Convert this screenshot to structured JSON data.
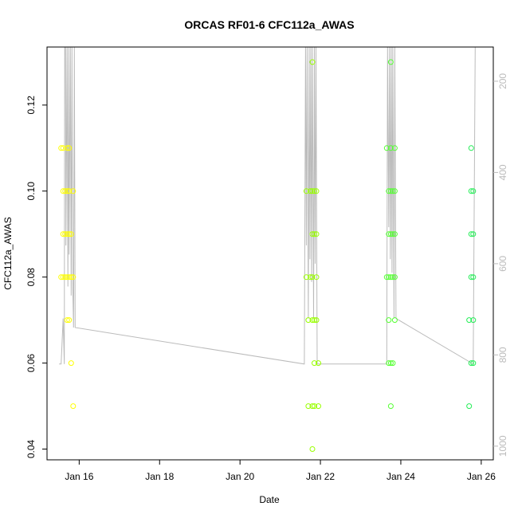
{
  "chart_data": {
    "type": "scatter",
    "title": "ORCAS RF01-6 CFC112a_AWAS",
    "xlabel": "Date",
    "ylabel": "CFC112a_AWAS",
    "x_unit": "date (January)",
    "xlim": [
      15.2,
      26.3
    ],
    "ylim": [
      0.0375,
      0.1335
    ],
    "x_ticks": [
      16,
      18,
      20,
      22,
      24,
      26
    ],
    "x_tick_labels": [
      "Jan 16",
      "Jan 18",
      "Jan 20",
      "Jan 22",
      "Jan 24",
      "Jan 26"
    ],
    "y_ticks": [
      0.04,
      0.06,
      0.08,
      0.1,
      0.12
    ],
    "y_tick_labels": [
      "0.04",
      "0.06",
      "0.08",
      "0.10",
      "0.12"
    ],
    "y2_axis": {
      "reversed": true,
      "range": [
        125,
        1030
      ],
      "ticks": [
        200,
        400,
        600,
        800,
        1000
      ],
      "tick_labels": [
        "200",
        "400",
        "600",
        "800",
        "1000"
      ],
      "color": "#bbbbbb"
    },
    "grid": false,
    "point_style": "open circle",
    "series": [
      {
        "color": "#ffff00",
        "points": [
          [
            15.55,
            0.11
          ],
          [
            15.6,
            0.11
          ],
          [
            15.7,
            0.11
          ],
          [
            15.75,
            0.11
          ],
          [
            15.6,
            0.1
          ],
          [
            15.65,
            0.1
          ],
          [
            15.7,
            0.1
          ],
          [
            15.75,
            0.1
          ],
          [
            15.85,
            0.1
          ],
          [
            15.6,
            0.09
          ],
          [
            15.65,
            0.09
          ],
          [
            15.7,
            0.09
          ],
          [
            15.75,
            0.09
          ],
          [
            15.8,
            0.09
          ],
          [
            15.55,
            0.08
          ],
          [
            15.6,
            0.08
          ],
          [
            15.65,
            0.08
          ],
          [
            15.7,
            0.08
          ],
          [
            15.75,
            0.08
          ],
          [
            15.8,
            0.08
          ],
          [
            15.85,
            0.08
          ],
          [
            15.7,
            0.07
          ],
          [
            15.75,
            0.07
          ],
          [
            15.8,
            0.06
          ],
          [
            15.85,
            0.05
          ]
        ]
      },
      {
        "color": "#99ff00",
        "points": [
          [
            21.65,
            0.1
          ],
          [
            21.75,
            0.1
          ],
          [
            21.8,
            0.1
          ],
          [
            21.85,
            0.1
          ],
          [
            21.9,
            0.1
          ],
          [
            21.8,
            0.09
          ],
          [
            21.85,
            0.09
          ],
          [
            21.9,
            0.09
          ],
          [
            21.65,
            0.08
          ],
          [
            21.75,
            0.08
          ],
          [
            21.8,
            0.08
          ],
          [
            21.9,
            0.08
          ],
          [
            21.7,
            0.07
          ],
          [
            21.8,
            0.07
          ],
          [
            21.85,
            0.07
          ],
          [
            21.9,
            0.07
          ],
          [
            21.85,
            0.06
          ],
          [
            21.95,
            0.06
          ],
          [
            21.7,
            0.05
          ],
          [
            21.8,
            0.05
          ],
          [
            21.85,
            0.05
          ],
          [
            21.95,
            0.05
          ],
          [
            21.8,
            0.04
          ],
          [
            21.8,
            0.13
          ]
        ]
      },
      {
        "color": "#55ff33",
        "points": [
          [
            23.65,
            0.11
          ],
          [
            23.75,
            0.11
          ],
          [
            23.85,
            0.11
          ],
          [
            23.7,
            0.1
          ],
          [
            23.75,
            0.1
          ],
          [
            23.8,
            0.1
          ],
          [
            23.85,
            0.1
          ],
          [
            23.7,
            0.09
          ],
          [
            23.75,
            0.09
          ],
          [
            23.8,
            0.09
          ],
          [
            23.85,
            0.09
          ],
          [
            23.65,
            0.08
          ],
          [
            23.7,
            0.08
          ],
          [
            23.75,
            0.08
          ],
          [
            23.8,
            0.08
          ],
          [
            23.85,
            0.08
          ],
          [
            23.7,
            0.07
          ],
          [
            23.85,
            0.07
          ],
          [
            23.7,
            0.06
          ],
          [
            23.75,
            0.06
          ],
          [
            23.8,
            0.06
          ],
          [
            23.75,
            0.05
          ],
          [
            23.75,
            0.13
          ]
        ]
      },
      {
        "color": "#22ee55",
        "points": [
          [
            25.75,
            0.11
          ],
          [
            25.75,
            0.1
          ],
          [
            25.8,
            0.1
          ],
          [
            25.75,
            0.09
          ],
          [
            25.8,
            0.09
          ],
          [
            25.75,
            0.08
          ],
          [
            25.8,
            0.08
          ],
          [
            25.7,
            0.07
          ],
          [
            25.8,
            0.07
          ],
          [
            25.75,
            0.06
          ],
          [
            25.8,
            0.06
          ],
          [
            25.7,
            0.05
          ]
        ]
      }
    ],
    "altitude_trace": {
      "color": "#bbbbbb",
      "axis": "y2",
      "points": [
        [
          15.5,
          820
        ],
        [
          15.55,
          820
        ],
        [
          15.6,
          720
        ],
        [
          15.63,
          820
        ],
        [
          15.64,
          125
        ],
        [
          15.66,
          125
        ],
        [
          15.67,
          560
        ],
        [
          15.7,
          125
        ],
        [
          15.72,
          650
        ],
        [
          15.74,
          125
        ],
        [
          15.75,
          580
        ],
        [
          15.78,
          125
        ],
        [
          15.8,
          670
        ],
        [
          15.82,
          125
        ],
        [
          15.84,
          650
        ],
        [
          15.86,
          740
        ],
        [
          15.88,
          125
        ],
        [
          15.9,
          740
        ],
        [
          21.6,
          820
        ],
        [
          21.63,
          125
        ],
        [
          21.65,
          560
        ],
        [
          21.67,
          125
        ],
        [
          21.7,
          720
        ],
        [
          21.72,
          125
        ],
        [
          21.74,
          590
        ],
        [
          21.76,
          125
        ],
        [
          21.78,
          640
        ],
        [
          21.8,
          125
        ],
        [
          21.83,
          720
        ],
        [
          21.85,
          125
        ],
        [
          21.87,
          600
        ],
        [
          21.89,
          125
        ],
        [
          21.92,
          820
        ],
        [
          23.65,
          820
        ],
        [
          23.67,
          125
        ],
        [
          23.7,
          520
        ],
        [
          23.72,
          125
        ],
        [
          23.74,
          590
        ],
        [
          23.76,
          125
        ],
        [
          23.78,
          620
        ],
        [
          23.8,
          125
        ],
        [
          23.83,
          720
        ],
        [
          23.85,
          125
        ],
        [
          23.88,
          720
        ],
        [
          25.8,
          820
        ],
        [
          25.85,
          125
        ]
      ]
    }
  }
}
